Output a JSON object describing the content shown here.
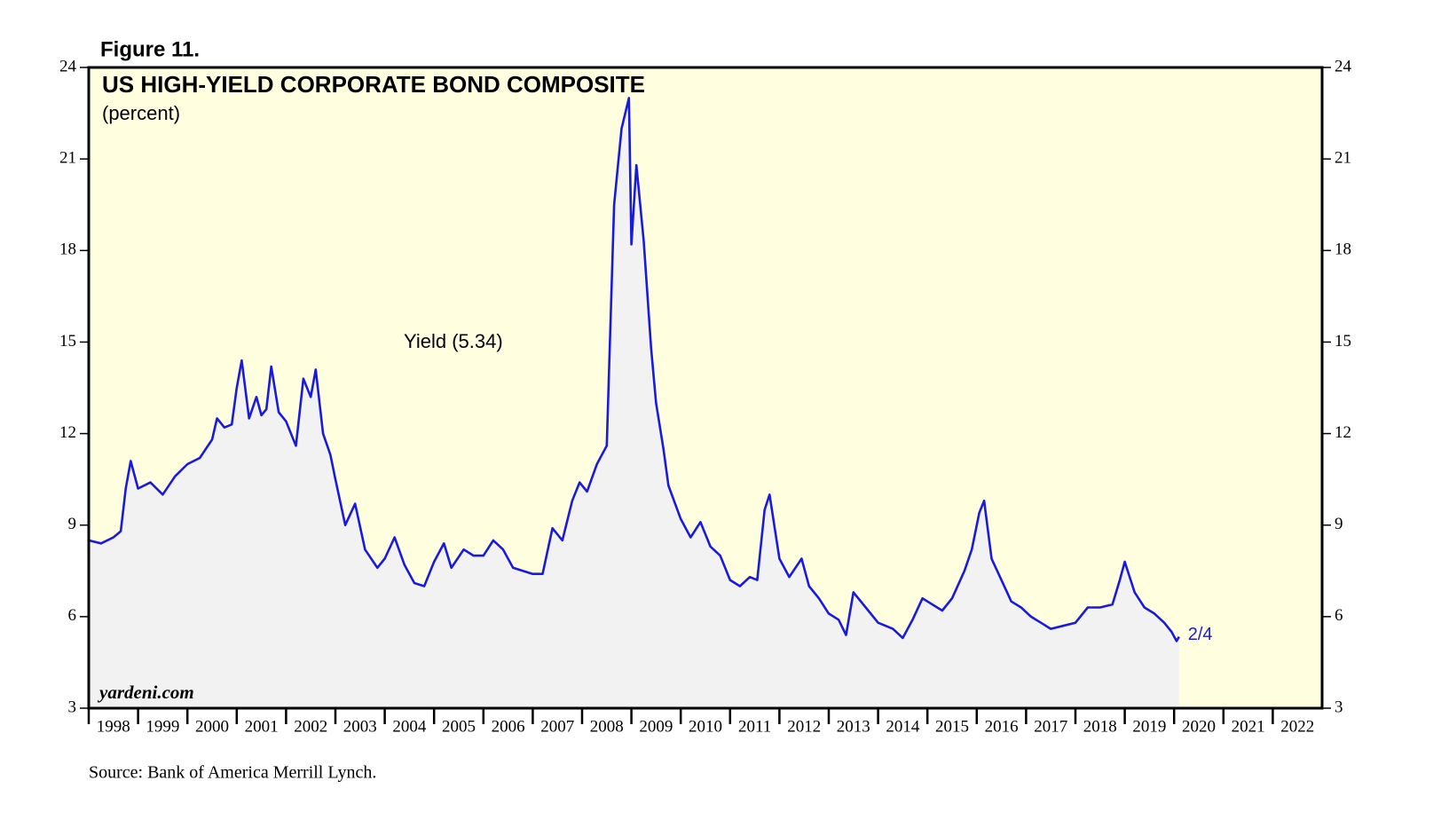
{
  "chart_data": {
    "type": "area-line",
    "figure_label": "Figure 11.",
    "title": "US HIGH-YIELD CORPORATE BOND COMPOSITE",
    "subtitle": "(percent)",
    "watermark": "yardeni.com",
    "source": "Source: Bank of America Merrill Lynch.",
    "end_label": "2/4",
    "xlim": [
      1998,
      2023
    ],
    "xticks": [
      {
        "value": 1998,
        "label": "1998"
      },
      {
        "value": 1999,
        "label": "1999"
      },
      {
        "value": 2000,
        "label": "2000"
      },
      {
        "value": 2001,
        "label": "2001"
      },
      {
        "value": 2002,
        "label": "2002"
      },
      {
        "value": 2003,
        "label": "2003"
      },
      {
        "value": 2004,
        "label": "2004"
      },
      {
        "value": 2005,
        "label": "2005"
      },
      {
        "value": 2006,
        "label": "2006"
      },
      {
        "value": 2007,
        "label": "2007"
      },
      {
        "value": 2008,
        "label": "2008"
      },
      {
        "value": 2009,
        "label": "2009"
      },
      {
        "value": 2010,
        "label": "2010"
      },
      {
        "value": 2011,
        "label": "2011"
      },
      {
        "value": 2012,
        "label": "2012"
      },
      {
        "value": 2013,
        "label": "2013"
      },
      {
        "value": 2014,
        "label": "2014"
      },
      {
        "value": 2015,
        "label": "2015"
      },
      {
        "value": 2016,
        "label": "2016"
      },
      {
        "value": 2017,
        "label": "2017"
      },
      {
        "value": 2018,
        "label": "2018"
      },
      {
        "value": 2019,
        "label": "2019"
      },
      {
        "value": 2020,
        "label": "2020"
      },
      {
        "value": 2021,
        "label": "2021"
      },
      {
        "value": 2022,
        "label": "2022"
      }
    ],
    "ylim": [
      3,
      24
    ],
    "yticks": [
      3,
      6,
      9,
      12,
      15,
      18,
      21,
      24
    ],
    "plot_background": "#ffffe0",
    "fill_color": "#f2f2f2",
    "series": [
      {
        "name": "Yield (5.34)",
        "color": "#1a1adc",
        "x": [
          1998.0,
          1998.25,
          1998.5,
          1998.65,
          1998.75,
          1998.85,
          1999.0,
          1999.25,
          1999.5,
          1999.75,
          2000.0,
          2000.25,
          2000.5,
          2000.6,
          2000.75,
          2000.9,
          2001.0,
          2001.1,
          2001.25,
          2001.4,
          2001.5,
          2001.6,
          2001.7,
          2001.85,
          2002.0,
          2002.2,
          2002.35,
          2002.5,
          2002.6,
          2002.75,
          2002.9,
          2003.0,
          2003.2,
          2003.4,
          2003.6,
          2003.85,
          2004.0,
          2004.2,
          2004.4,
          2004.6,
          2004.8,
          2005.0,
          2005.2,
          2005.35,
          2005.6,
          2005.8,
          2006.0,
          2006.2,
          2006.4,
          2006.6,
          2006.8,
          2007.0,
          2007.2,
          2007.4,
          2007.6,
          2007.8,
          2007.95,
          2008.1,
          2008.3,
          2008.5,
          2008.65,
          2008.8,
          2008.95,
          2009.0,
          2009.1,
          2009.25,
          2009.4,
          2009.5,
          2009.65,
          2009.75,
          2010.0,
          2010.2,
          2010.4,
          2010.6,
          2010.8,
          2011.0,
          2011.2,
          2011.4,
          2011.55,
          2011.7,
          2011.8,
          2012.0,
          2012.2,
          2012.45,
          2012.6,
          2012.8,
          2013.0,
          2013.2,
          2013.35,
          2013.5,
          2013.75,
          2014.0,
          2014.3,
          2014.5,
          2014.7,
          2014.9,
          2015.0,
          2015.3,
          2015.5,
          2015.75,
          2015.9,
          2016.05,
          2016.15,
          2016.3,
          2016.5,
          2016.7,
          2016.9,
          2017.1,
          2017.3,
          2017.5,
          2017.75,
          2018.0,
          2018.25,
          2018.5,
          2018.75,
          2018.9,
          2019.0,
          2019.2,
          2019.4,
          2019.6,
          2019.8,
          2019.95,
          2020.05,
          2020.1
        ],
        "values": [
          8.5,
          8.4,
          8.6,
          8.8,
          10.2,
          11.1,
          10.2,
          10.4,
          10.0,
          10.6,
          11.0,
          11.2,
          11.8,
          12.5,
          12.2,
          12.3,
          13.5,
          14.4,
          12.5,
          13.2,
          12.6,
          12.8,
          14.2,
          12.7,
          12.4,
          11.6,
          13.8,
          13.2,
          14.1,
          12.0,
          11.3,
          10.5,
          9.0,
          9.7,
          8.2,
          7.6,
          7.9,
          8.6,
          7.7,
          7.1,
          7.0,
          7.8,
          8.4,
          7.6,
          8.2,
          8.0,
          8.0,
          8.5,
          8.2,
          7.6,
          7.5,
          7.4,
          7.4,
          8.9,
          8.5,
          9.8,
          10.4,
          10.1,
          11.0,
          11.6,
          19.5,
          22.0,
          23.0,
          18.2,
          20.8,
          18.3,
          14.8,
          13.0,
          11.5,
          10.3,
          9.2,
          8.6,
          9.1,
          8.3,
          8.0,
          7.2,
          7.0,
          7.3,
          7.2,
          9.5,
          10.0,
          7.9,
          7.3,
          7.9,
          7.0,
          6.6,
          6.1,
          5.9,
          5.4,
          6.8,
          6.3,
          5.8,
          5.6,
          5.3,
          5.9,
          6.6,
          6.5,
          6.2,
          6.6,
          7.5,
          8.2,
          9.4,
          9.8,
          7.9,
          7.2,
          6.5,
          6.3,
          6.0,
          5.8,
          5.6,
          5.7,
          5.8,
          6.3,
          6.3,
          6.4,
          7.2,
          7.8,
          6.8,
          6.3,
          6.1,
          5.8,
          5.5,
          5.2,
          5.34
        ]
      }
    ]
  }
}
